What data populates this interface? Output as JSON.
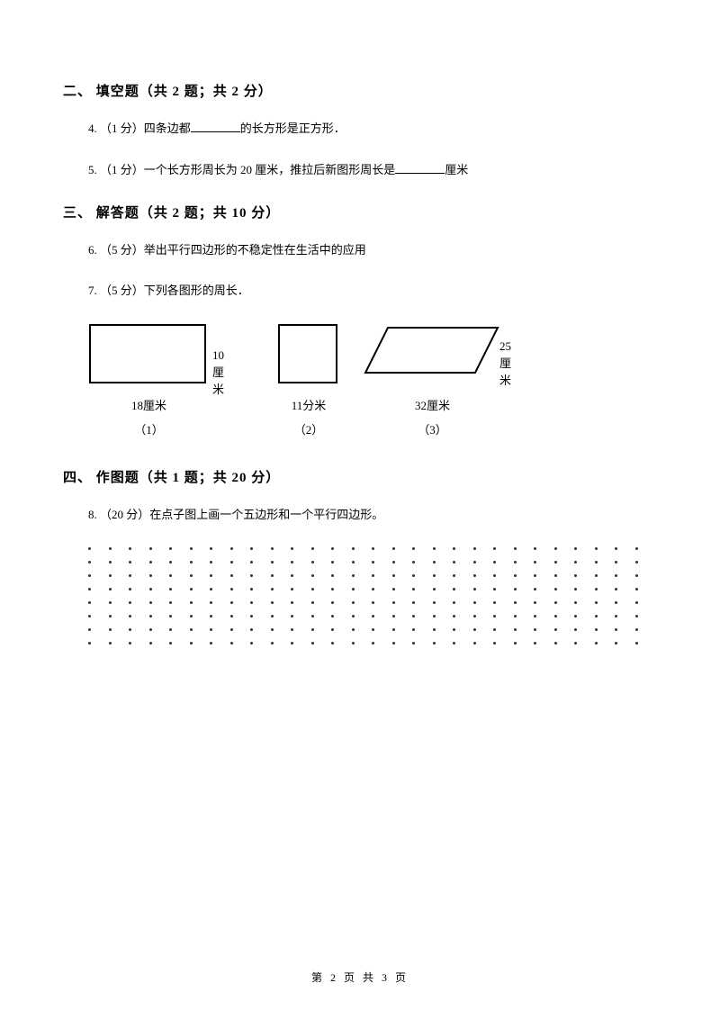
{
  "section2": {
    "header": "二、 填空题（共 2 题；共 2 分）",
    "q4": {
      "prefix": "4.  （1 分）四条边都",
      "suffix": "的长方形是正方形．"
    },
    "q5": {
      "prefix": "5.  （1 分）一个长方形周长为 20 厘米，推拉后新图形周长是",
      "suffix": "厘米"
    }
  },
  "section3": {
    "header": "三、 解答题（共 2 题；共 10 分）",
    "q6": "6.  （5 分）举出平行四边形的不稳定性在生活中的应用",
    "q7": "7.  （5 分）下列各图形的周长．",
    "figures": {
      "fig1": {
        "width_label": "18厘米",
        "height_label": "10厘米",
        "caption": "（1）"
      },
      "fig2": {
        "width_label": "11分米",
        "caption": "（2）"
      },
      "fig3": {
        "width_label": "32厘米",
        "side_label": "25厘米",
        "caption": "（3）"
      }
    }
  },
  "section4": {
    "header": "四、 作图题（共 1 题；共 20 分）",
    "q8": "8.  （20 分）在点子图上画一个五边形和一个平行四边形。"
  },
  "dotgrid": {
    "rows": 8,
    "cols": 28
  },
  "footer": "第 2 页 共 3 页",
  "colors": {
    "text": "#000000",
    "background": "#ffffff",
    "shape_stroke": "#000000"
  }
}
